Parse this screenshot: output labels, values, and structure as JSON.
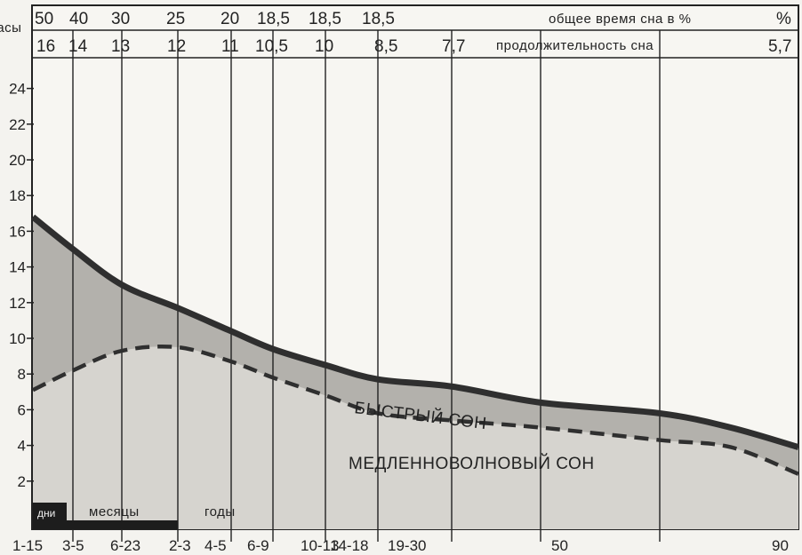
{
  "chart_data": {
    "type": "area",
    "title": "",
    "ylabel": "часы",
    "xlabel": "",
    "ylim": [
      0,
      24
    ],
    "yticks": [
      2,
      4,
      6,
      8,
      10,
      12,
      14,
      16,
      18,
      20,
      22,
      24
    ],
    "categories": [
      "1-15",
      "3-5",
      "6-23",
      "2-3",
      "4-5",
      "6-9",
      "10-13",
      "14-18",
      "19-30",
      "",
      "50",
      "",
      "90"
    ],
    "age_bands": [
      "дни",
      "месяцы",
      "годы"
    ],
    "top_rows": {
      "rem_percent": {
        "label": "общее время сна в %",
        "suffix": "%",
        "values": [
          "50",
          "40",
          "30",
          "25",
          "20",
          "18,5",
          "18,5",
          "18,5"
        ]
      },
      "sleep_duration": {
        "label": "продолжительность сна",
        "values": [
          "16",
          "14",
          "13",
          "12",
          "11",
          "10,5",
          "10",
          "8,5",
          "7,7",
          "5,7"
        ]
      }
    },
    "series": [
      {
        "name": "БЫСТРЫЙ СОН",
        "x_px_hint": "total sleep (upper curve)",
        "x": [
          0,
          1,
          2,
          3,
          4,
          5,
          6,
          7,
          8,
          9,
          10,
          11,
          12
        ],
        "values": [
          16.8,
          15,
          13,
          11.7,
          10.4,
          9.4,
          8.5,
          7.7,
          7.3,
          6.4,
          5.8,
          5.0,
          3.9
        ]
      },
      {
        "name": "МЕДЛЕННОВОЛНОВЫЙ СОН",
        "x": [
          0,
          1,
          2,
          3,
          4,
          5,
          6,
          7,
          8,
          9,
          10,
          11,
          12
        ],
        "values": [
          7.1,
          8.2,
          9.3,
          9.5,
          8.7,
          7.8,
          6.8,
          5.8,
          5.4,
          5.0,
          4.3,
          3.9,
          2.4
        ]
      }
    ],
    "grid": true
  }
}
